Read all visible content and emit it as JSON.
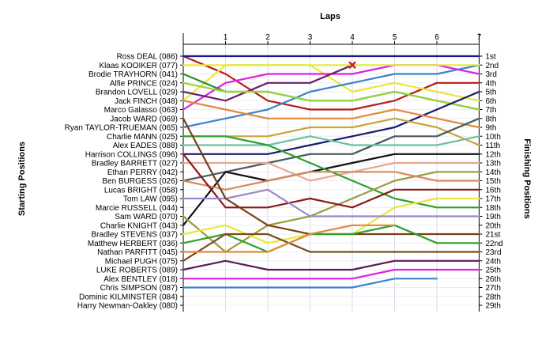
{
  "chart_data": {
    "type": "line",
    "title": "",
    "xlabel": "Laps",
    "ylabel_left": "Starting Positions",
    "ylabel_right": "Finishing Positions",
    "x": [
      0,
      1,
      2,
      3,
      4,
      5,
      6,
      7
    ],
    "x_tick_labels": [
      "1",
      "2",
      "3",
      "4",
      "5",
      "6",
      "7"
    ],
    "position_labels": [
      "1st",
      "2nd",
      "3rd",
      "4th",
      "5th",
      "6th",
      "7th",
      "8th",
      "9th",
      "10th",
      "11th",
      "12th",
      "13th",
      "14th",
      "15th",
      "16th",
      "17th",
      "18th",
      "19th",
      "20th",
      "21st",
      "22nd",
      "23rd",
      "24th",
      "25th",
      "26th",
      "27th",
      "28th",
      "29th"
    ],
    "grid": true,
    "y_inverted": true,
    "series": [
      {
        "name": "Ross DEAL (086)",
        "color": "#1a1a8c",
        "positions": [
          1,
          1,
          1,
          1,
          1,
          1,
          1,
          1
        ]
      },
      {
        "name": "Klaas KOOIKER (077)",
        "color": "#e8e83a",
        "positions": [
          2,
          2,
          2,
          2,
          2,
          2,
          2,
          2
        ]
      },
      {
        "name": "Brodie TRAYHORN (041)",
        "color": "#b81c1c",
        "positions": [
          3,
          null,
          null,
          null,
          null,
          null,
          null,
          null
        ]
      },
      {
        "name": "Alfie PRINCE (024)",
        "color": "#2e8b2e",
        "positions": [
          4,
          null,
          null,
          null,
          null,
          null,
          null,
          null
        ]
      },
      {
        "name": "Brandon LOVELL (029)",
        "color": "#6b1f6b",
        "positions": [
          5,
          null,
          null,
          null,
          null,
          null,
          null,
          null
        ]
      },
      {
        "name": "Jack FINCH (048)",
        "color": "#e08a3c",
        "positions": [
          6,
          null,
          null,
          null,
          null,
          null,
          null,
          null
        ]
      },
      {
        "name": "Marco Galasso (063)",
        "color": "#e020e0",
        "positions": [
          7,
          null,
          null,
          null,
          null,
          null,
          null,
          null
        ]
      },
      {
        "name": "Jacob WARD (069)",
        "color": "#7a3f1a",
        "positions": [
          8,
          null,
          null,
          null,
          null,
          null,
          null,
          null
        ]
      },
      {
        "name": "Ryan TAYLOR-TRUEMAN (065)",
        "color": "#3a84c8",
        "positions": [
          9,
          null,
          null,
          null,
          null,
          null,
          null,
          null
        ]
      },
      {
        "name": "Charlie MANN (025)",
        "color": "#2ea02e",
        "positions": [
          10,
          null,
          null,
          null,
          null,
          null,
          null,
          null
        ]
      },
      {
        "name": "Alex EADES (088)",
        "color": "#6cc0a8",
        "positions": [
          11,
          null,
          null,
          null,
          null,
          null,
          null,
          null
        ]
      },
      {
        "name": "Harrison COLLINGS (096)",
        "color": "#1a1a6e",
        "positions": [
          12,
          null,
          null,
          null,
          null,
          null,
          null,
          null
        ]
      },
      {
        "name": "Bradley BARRETT (027)",
        "color": "#e8a890",
        "positions": [
          13,
          null,
          null,
          null,
          null,
          null,
          null,
          null
        ]
      },
      {
        "name": "Ethan PERRY (042)",
        "color": "#3a9a9a",
        "positions": [
          14,
          null,
          null,
          null,
          null,
          null,
          null,
          null
        ]
      },
      {
        "name": "Ben BURGESS (026)",
        "color": "#d88a5a",
        "positions": [
          15,
          null,
          null,
          null,
          null,
          null,
          null,
          null
        ]
      },
      {
        "name": "Lucas BRIGHT (058)",
        "color": "#4a5a5a",
        "positions": [
          16,
          null,
          null,
          null,
          null,
          null,
          null,
          null
        ]
      },
      {
        "name": "Tom LAW (095)",
        "color": "#9a88cc",
        "positions": [
          17,
          null,
          null,
          null,
          null,
          null,
          null,
          null
        ]
      },
      {
        "name": "Marcie RUSSELL (044)",
        "color": "#8a1a1a",
        "positions": [
          18,
          null,
          null,
          null,
          null,
          null,
          null,
          null
        ]
      },
      {
        "name": "Sam WARD (070)",
        "color": "#9a9a3a",
        "positions": [
          19,
          null,
          null,
          null,
          null,
          null,
          null,
          null
        ]
      },
      {
        "name": "Charlie KNIGHT (043)",
        "color": "#111111",
        "positions": [
          20,
          null,
          null,
          null,
          null,
          null,
          null,
          null
        ]
      },
      {
        "name": "Bradley STEVENS (037)",
        "color": "#e8e83a",
        "positions": [
          21,
          null,
          null,
          null,
          null,
          null,
          null,
          null
        ]
      },
      {
        "name": "Matthew HERBERT (036)",
        "color": "#2ea02e",
        "positions": [
          22,
          null,
          null,
          null,
          null,
          null,
          null,
          null
        ]
      },
      {
        "name": "Nathan PARFITT (045)",
        "color": "#7a4a1a",
        "positions": [
          23,
          null,
          null,
          null,
          null,
          null,
          null,
          null
        ]
      },
      {
        "name": "Michael PUGH (075)",
        "color": "#e08a3c",
        "positions": [
          24,
          null,
          null,
          null,
          null,
          null,
          null,
          null
        ]
      },
      {
        "name": "LUKE ROBERTS (089)",
        "color": "#5a1a5a",
        "positions": [
          25,
          null,
          null,
          null,
          null,
          null,
          null,
          null
        ]
      },
      {
        "name": "Alex BENTLEY (018)",
        "color": "#e020e0",
        "positions": [
          26,
          26,
          26,
          26,
          26,
          25,
          25,
          25
        ]
      },
      {
        "name": "Chris SIMPSON (087)",
        "color": "#3a84c8",
        "positions": [
          27,
          27,
          27,
          27,
          27,
          26,
          26,
          null
        ]
      },
      {
        "name": "Dominic KILMINSTER (084)",
        "color": "#888888",
        "positions": [
          28,
          null,
          null,
          null,
          null,
          null,
          null,
          null
        ]
      },
      {
        "name": "Harry Newman-Oakley (080)",
        "color": "#888888",
        "positions": [
          29,
          null,
          null,
          null,
          null,
          null,
          null,
          null
        ]
      }
    ],
    "tracks": [
      {
        "color": "#b81c1c",
        "positions": [
          1,
          3,
          6,
          7,
          7,
          6,
          4,
          4
        ]
      },
      {
        "color": "#e8e83a",
        "positions": [
          6,
          2,
          2,
          2,
          5,
          4,
          5,
          6
        ]
      },
      {
        "color": "#3a84c8",
        "positions": [
          9,
          8,
          7,
          5,
          4,
          3,
          3,
          2
        ]
      },
      {
        "color": "#e020e0",
        "positions": [
          7,
          4,
          3,
          3,
          3,
          2,
          2,
          3
        ]
      },
      {
        "color": "#6b1f6b",
        "positions": [
          5,
          6,
          4,
          4,
          2,
          null,
          null,
          null
        ]
      },
      {
        "color": "#2e8b2e",
        "positions": [
          3,
          5,
          5,
          6,
          6,
          5,
          6,
          7
        ]
      },
      {
        "color": "#9ad43a",
        "positions": [
          4,
          5,
          5,
          6,
          6,
          5,
          6,
          7
        ]
      },
      {
        "color": "#1a1a6e",
        "positions": [
          12,
          12,
          12,
          11,
          10,
          9,
          7,
          5
        ]
      },
      {
        "color": "#e08a3c",
        "positions": [
          6,
          7,
          8,
          8,
          8,
          7,
          8,
          9
        ]
      },
      {
        "color": "#c8a43a",
        "positions": [
          10,
          10,
          10,
          9,
          9,
          8,
          9,
          11
        ]
      },
      {
        "color": "#4a5a5a",
        "positions": [
          15,
          14,
          13,
          12,
          12,
          10,
          10,
          8
        ]
      },
      {
        "color": "#6cc0a8",
        "positions": [
          11,
          11,
          11,
          10,
          11,
          11,
          11,
          10
        ]
      },
      {
        "color": "#111111",
        "positions": [
          20,
          14,
          15,
          14,
          13,
          12,
          12,
          12
        ]
      },
      {
        "color": "#e8a890",
        "positions": [
          13,
          13,
          13,
          15,
          14,
          13,
          13,
          13
        ]
      },
      {
        "color": "#2ea02e",
        "positions": [
          10,
          10,
          11,
          13,
          15,
          17,
          18,
          18
        ]
      },
      {
        "color": "#9a9a3a",
        "positions": [
          19,
          23,
          20,
          19,
          17,
          15,
          14,
          14
        ]
      },
      {
        "color": "#d88a5a",
        "positions": [
          15,
          16,
          15,
          14,
          14,
          14,
          15,
          15
        ]
      },
      {
        "color": "#8a1a1a",
        "positions": [
          12,
          18,
          18,
          17,
          18,
          16,
          16,
          16
        ]
      },
      {
        "color": "#e8e83a",
        "positions": [
          21,
          20,
          22,
          21,
          21,
          18,
          17,
          17
        ]
      },
      {
        "color": "#9a88cc",
        "positions": [
          17,
          17,
          16,
          19,
          19,
          19,
          19,
          19
        ]
      },
      {
        "color": "#7a3f1a",
        "positions": [
          8,
          17,
          20,
          21,
          21,
          21,
          21,
          21
        ]
      },
      {
        "color": "#2ea02e",
        "positions": [
          22,
          21,
          23,
          21,
          21,
          20,
          22,
          22
        ]
      },
      {
        "color": "#7a4a1a",
        "positions": [
          24,
          21,
          21,
          23,
          23,
          23,
          23,
          23
        ]
      },
      {
        "color": "#e08a3c",
        "positions": [
          23,
          23,
          23,
          21,
          20,
          20,
          null,
          null
        ]
      },
      {
        "color": "#5a1a5a",
        "positions": [
          25,
          24,
          25,
          25,
          25,
          24,
          24,
          24
        ]
      }
    ],
    "annotations": [
      {
        "type": "cross",
        "lap": 4,
        "position": 2,
        "color": "#cc2222"
      }
    ]
  }
}
